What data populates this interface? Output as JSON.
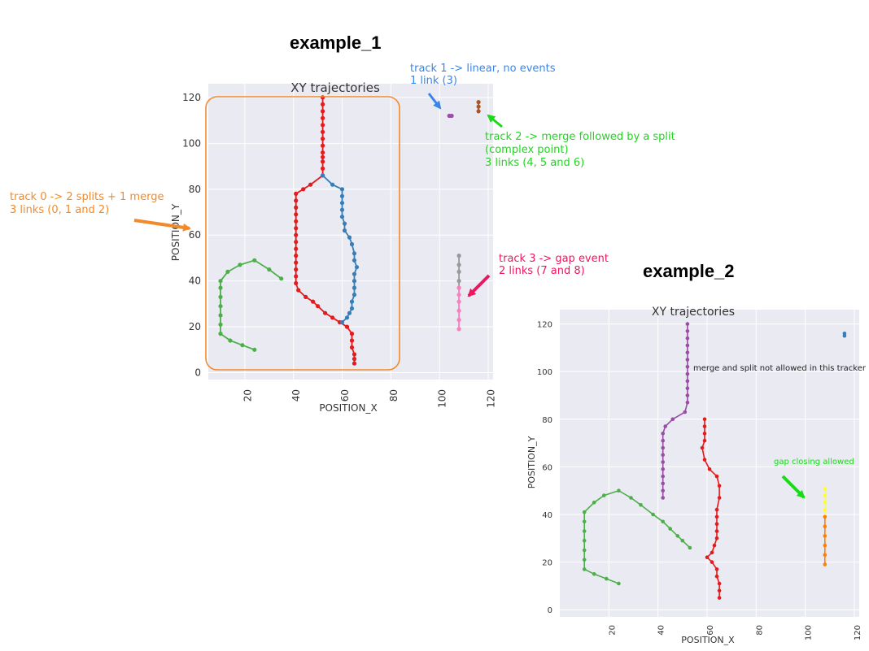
{
  "titles": {
    "example_1": "example_1",
    "example_2": "example_2"
  },
  "annotations": {
    "track0": {
      "line1": "track 0 -> 2 splits + 1 merge",
      "line2": "3 links (0, 1 and 2)",
      "color": "#f28a2b"
    },
    "track1": {
      "line1": "track 1 -> linear, no events",
      "line2": "1 link (3)",
      "color": "#3a86e8"
    },
    "track2": {
      "line1": "track 2 -> merge followed by a split",
      "line2": "(complex point)",
      "line3": "3 links (4, 5 and 6)",
      "color": "#1ed81e"
    },
    "track3": {
      "line1": "track 3 -> gap event",
      "line2": "2 links (7 and 8)",
      "color": "#f0155e"
    },
    "merge_split": {
      "text": "merge and split not allowed in this tracker",
      "color": "#222222"
    },
    "gap_closing": {
      "text": "gap closing allowed",
      "color": "#1ed81e"
    }
  },
  "chart_data": [
    {
      "type": "line",
      "title": "XY trajectories",
      "xlabel": "POSITION_X",
      "ylabel": "POSITION_Y",
      "xlim": [
        5,
        122
      ],
      "ylim": [
        -3,
        126
      ],
      "xticks": [
        20,
        40,
        60,
        80,
        100,
        120
      ],
      "yticks": [
        0,
        20,
        40,
        60,
        80,
        100,
        120
      ],
      "grid": true,
      "series": [
        {
          "color": "#e41a1c",
          "points": [
            [
              52,
              120
            ],
            [
              52,
              117
            ],
            [
              52,
              114
            ],
            [
              52,
              111
            ],
            [
              52,
              108
            ],
            [
              52,
              105
            ],
            [
              52,
              102
            ],
            [
              52,
              99
            ],
            [
              52,
              96
            ],
            [
              52,
              94
            ],
            [
              52,
              92
            ],
            [
              52,
              89
            ],
            [
              52,
              86
            ],
            [
              47,
              82
            ],
            [
              44,
              80
            ],
            [
              41,
              78
            ],
            [
              41,
              75
            ],
            [
              41,
              72
            ],
            [
              41,
              69
            ],
            [
              41,
              66
            ],
            [
              41,
              63
            ],
            [
              41,
              60
            ],
            [
              41,
              57
            ],
            [
              41,
              54
            ],
            [
              41,
              51
            ],
            [
              41,
              48
            ],
            [
              41,
              45
            ],
            [
              41,
              42
            ],
            [
              41,
              39
            ],
            [
              42,
              36
            ],
            [
              45,
              33
            ],
            [
              48,
              31
            ],
            [
              50,
              29
            ],
            [
              53,
              26
            ],
            [
              56,
              24
            ],
            [
              59,
              22
            ],
            [
              62,
              20
            ],
            [
              64,
              17
            ],
            [
              64,
              14
            ],
            [
              64,
              11
            ],
            [
              65,
              8
            ],
            [
              65,
              6
            ],
            [
              65,
              4
            ]
          ]
        },
        {
          "color": "#377eb8",
          "points": [
            [
              52,
              86
            ],
            [
              56,
              82
            ],
            [
              60,
              80
            ],
            [
              60,
              77
            ],
            [
              60,
              74
            ],
            [
              60,
              71
            ],
            [
              60,
              68
            ],
            [
              61,
              65
            ],
            [
              61,
              62
            ],
            [
              63,
              59
            ],
            [
              64,
              56
            ],
            [
              65,
              52
            ],
            [
              65,
              49
            ],
            [
              66,
              46
            ],
            [
              65,
              43
            ],
            [
              65,
              40
            ],
            [
              65,
              37
            ],
            [
              65,
              34
            ],
            [
              64,
              31
            ],
            [
              64,
              28
            ],
            [
              63,
              26
            ],
            [
              62,
              24
            ],
            [
              60,
              22
            ]
          ]
        },
        {
          "color": "#4daf4a",
          "points": [
            [
              35,
              41
            ],
            [
              30,
              45
            ],
            [
              24,
              49
            ],
            [
              18,
              47
            ],
            [
              13,
              44
            ],
            [
              10,
              40
            ],
            [
              10,
              37
            ],
            [
              10,
              33
            ],
            [
              10,
              29
            ],
            [
              10,
              25
            ],
            [
              10,
              21
            ],
            [
              10,
              17
            ],
            [
              14,
              14
            ],
            [
              19,
              12
            ],
            [
              24,
              10
            ]
          ]
        },
        {
          "color": "#984ea3",
          "points": [
            [
              104,
              112
            ],
            [
              105,
              112
            ]
          ]
        },
        {
          "color": "#a65628",
          "points": [
            [
              116,
              118
            ],
            [
              116,
              116
            ],
            [
              116,
              114
            ]
          ]
        },
        {
          "color": "#999999",
          "points": [
            [
              108,
              51
            ],
            [
              108,
              47
            ],
            [
              108,
              44
            ],
            [
              108,
              40
            ],
            [
              108,
              37
            ]
          ]
        },
        {
          "color": "#f781bf",
          "points": [
            [
              108,
              37
            ],
            [
              108,
              34
            ],
            [
              108,
              31
            ],
            [
              108,
              27
            ],
            [
              108,
              23
            ],
            [
              108,
              19
            ]
          ]
        }
      ]
    },
    {
      "type": "line",
      "title": "XY trajectories",
      "xlabel": "POSITION_X",
      "ylabel": "POSITION_Y",
      "xlim": [
        0,
        122
      ],
      "ylim": [
        -3,
        126
      ],
      "xticks": [
        20,
        40,
        60,
        80,
        100,
        120
      ],
      "yticks": [
        0,
        20,
        40,
        60,
        80,
        100,
        120
      ],
      "grid": true,
      "series": [
        {
          "color": "#984ea3",
          "points": [
            [
              52,
              120
            ],
            [
              52,
              117
            ],
            [
              52,
              114
            ],
            [
              52,
              111
            ],
            [
              52,
              108
            ],
            [
              52,
              105
            ],
            [
              52,
              102
            ],
            [
              52,
              99
            ],
            [
              52,
              96
            ],
            [
              52,
              93
            ],
            [
              52,
              90
            ],
            [
              52,
              87
            ],
            [
              51,
              83
            ],
            [
              46,
              80
            ],
            [
              43,
              77
            ],
            [
              42,
              74
            ],
            [
              42,
              71
            ],
            [
              42,
              68
            ],
            [
              42,
              65
            ],
            [
              42,
              62
            ],
            [
              42,
              59
            ],
            [
              42,
              56
            ],
            [
              42,
              53
            ],
            [
              42,
              50
            ],
            [
              42,
              47
            ]
          ]
        },
        {
          "color": "#e41a1c",
          "points": [
            [
              59,
              80
            ],
            [
              59,
              77
            ],
            [
              59,
              74
            ],
            [
              59,
              71
            ],
            [
              58,
              68
            ],
            [
              59,
              63
            ],
            [
              61,
              59
            ],
            [
              64,
              56
            ],
            [
              65,
              52
            ],
            [
              65,
              47
            ],
            [
              64,
              42
            ],
            [
              64,
              39
            ],
            [
              64,
              36
            ],
            [
              64,
              33
            ],
            [
              64,
              30
            ],
            [
              63,
              27
            ],
            [
              62,
              24
            ],
            [
              60,
              22
            ],
            [
              62,
              20
            ],
            [
              64,
              17
            ],
            [
              64,
              14
            ],
            [
              65,
              11
            ],
            [
              65,
              8
            ],
            [
              65,
              5
            ]
          ]
        },
        {
          "color": "#4daf4a",
          "points": [
            [
              53,
              26
            ],
            [
              50,
              29
            ],
            [
              48,
              31
            ],
            [
              45,
              34
            ],
            [
              42,
              37
            ],
            [
              38,
              40
            ],
            [
              33,
              44
            ],
            [
              29,
              47
            ],
            [
              24,
              50
            ],
            [
              18,
              48
            ],
            [
              14,
              45
            ],
            [
              10,
              41
            ],
            [
              10,
              37
            ],
            [
              10,
              33
            ],
            [
              10,
              29
            ],
            [
              10,
              25
            ],
            [
              10,
              21
            ],
            [
              10,
              17
            ],
            [
              14,
              15
            ],
            [
              19,
              13
            ],
            [
              24,
              11
            ]
          ]
        },
        {
          "color": "#377eb8",
          "points": [
            [
              116,
              116
            ],
            [
              116,
              115
            ]
          ]
        },
        {
          "color": "#ffff33",
          "points": [
            [
              108,
              51
            ],
            [
              108,
              48
            ],
            [
              108,
              45
            ],
            [
              108,
              42
            ],
            [
              108,
              39
            ]
          ]
        },
        {
          "color": "#ff7f00",
          "points": [
            [
              108,
              39
            ],
            [
              108,
              35
            ],
            [
              108,
              31
            ],
            [
              108,
              27
            ],
            [
              108,
              23
            ],
            [
              108,
              19
            ]
          ]
        }
      ]
    }
  ]
}
